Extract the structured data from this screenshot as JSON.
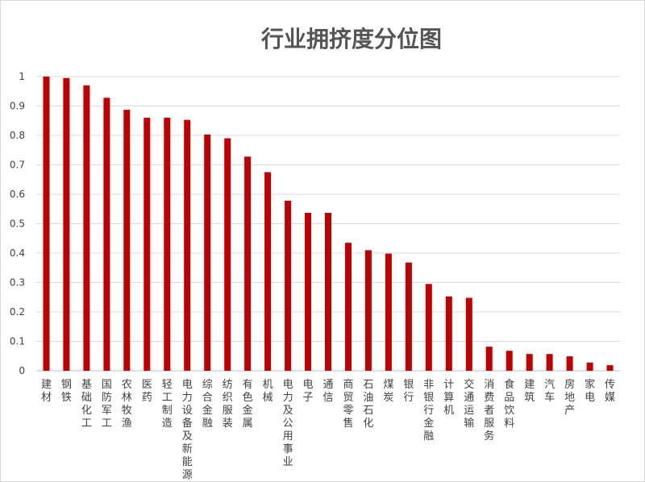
{
  "chart_data": {
    "type": "bar",
    "title": "行业拥挤度分位图",
    "xlabel": "",
    "ylabel": "",
    "ylim": [
      0,
      1
    ],
    "y_ticks": [
      "0",
      "0.1",
      "0.2",
      "0.3",
      "0.4",
      "0.5",
      "0.6",
      "0.7",
      "0.8",
      "0.9",
      "1"
    ],
    "grid": true,
    "legend": "none",
    "bar_color": "#c00000",
    "categories": [
      "建材",
      "钢铁",
      "基础化工",
      "国防军工",
      "农林牧渔",
      "医药",
      "轻工制造",
      "电力设备及新能源",
      "综合金融",
      "纺织服装",
      "有色金属",
      "机械",
      "电力及公用事业",
      "电子",
      "通信",
      "商贸零售",
      "石油石化",
      "煤炭",
      "银行",
      "非银行金融",
      "计算机",
      "交通运输",
      "消费者服务",
      "食品饮料",
      "建筑",
      "汽车",
      "房地产",
      "家电",
      "传媒"
    ],
    "values": [
      1.0,
      0.995,
      0.97,
      0.928,
      0.887,
      0.86,
      0.86,
      0.853,
      0.803,
      0.79,
      0.728,
      0.675,
      0.578,
      0.537,
      0.537,
      0.435,
      0.41,
      0.398,
      0.368,
      0.295,
      0.253,
      0.248,
      0.082,
      0.068,
      0.057,
      0.057,
      0.049,
      0.028,
      0.019
    ]
  }
}
